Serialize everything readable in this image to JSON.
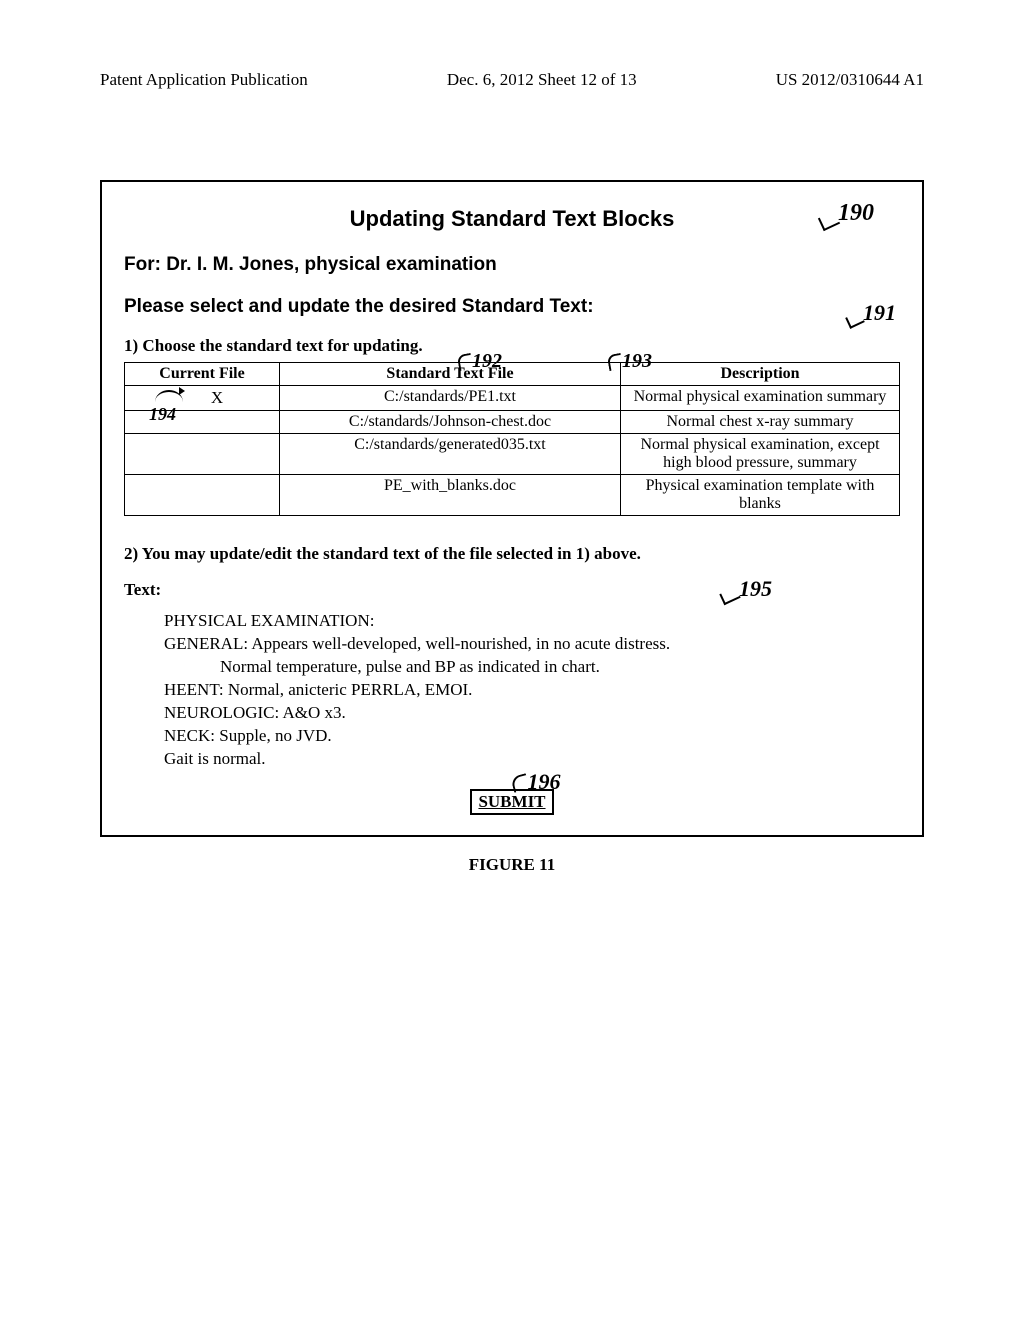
{
  "header": {
    "left": "Patent Application Publication",
    "center": "Dec. 6, 2012   Sheet 12 of 13",
    "right": "US 2012/0310644 A1"
  },
  "refs": {
    "r190": "190",
    "r191": "191",
    "r192": "192",
    "r193": "193",
    "r194": "194",
    "r195": "195",
    "r196": "196"
  },
  "panel": {
    "title": "Updating Standard Text Blocks",
    "for_line": "For:  Dr. I. M. Jones, physical examination",
    "instruction": "Please select and update the desired Standard Text:",
    "step1": "1)  Choose the standard text for updating.",
    "table": {
      "headers": {
        "current": "Current File",
        "file": "Standard Text File",
        "desc": "Description"
      },
      "rows": [
        {
          "current": "X",
          "file": "C:/standards/PE1.txt",
          "desc": "Normal physical examination summary"
        },
        {
          "current": "",
          "file": "C:/standards/Johnson-chest.doc",
          "desc": "Normal chest x-ray summary"
        },
        {
          "current": "",
          "file": "C:/standards/generated035.txt",
          "desc": "Normal physical examination, except high blood pressure, summary"
        },
        {
          "current": "",
          "file": "PE_with_blanks.doc",
          "desc": "Physical examination template with blanks"
        }
      ]
    },
    "step2": "2) You may update/edit the standard text of the file selected in 1) above.",
    "text_label": "Text:",
    "text_body": {
      "l1": "PHYSICAL EXAMINATION:",
      "l2": "GENERAL:  Appears well-developed, well-nourished, in no acute distress.",
      "l3": "Normal temperature, pulse and BP as indicated in chart.",
      "l4": "HEENT:  Normal, anicteric PERRLA, EMOI.",
      "l5": "NEUROLOGIC:  A&O x3.",
      "l6": "NECK:  Supple, no JVD.",
      "l7": "Gait is normal."
    },
    "submit": "SUBMIT"
  },
  "figure_caption": "FIGURE 11"
}
